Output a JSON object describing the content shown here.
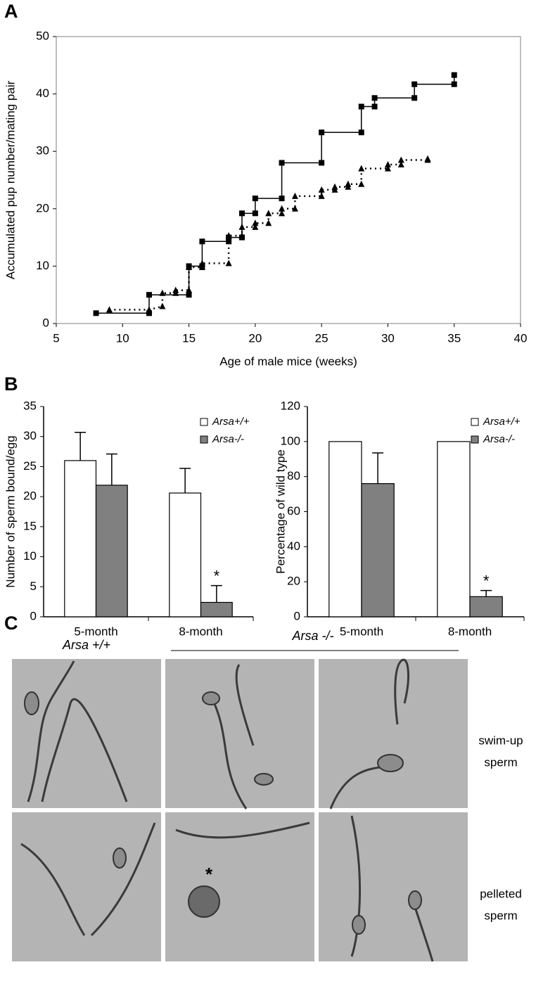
{
  "panel_labels": [
    "A",
    "B",
    "C"
  ],
  "chart_data": [
    {
      "type": "line",
      "xlabel": "Age of male mice (weeks)",
      "ylabel": "Accumulated pup number/mating pair",
      "xlim": [
        5,
        40
      ],
      "xticks": [
        5,
        10,
        15,
        20,
        25,
        30,
        35,
        40
      ],
      "ylim": [
        0,
        50
      ],
      "yticks": [
        0,
        10,
        20,
        30,
        40,
        50
      ],
      "frame": true,
      "series": [
        {
          "color": "#000000",
          "marker": "square",
          "linestyle": "solid",
          "x": [
            8,
            12,
            12,
            15,
            15,
            16,
            16,
            18,
            18,
            19,
            19,
            20,
            20,
            22,
            22,
            25,
            25,
            28,
            28,
            29,
            29,
            32,
            32,
            35,
            35
          ],
          "values": [
            1.8,
            1.8,
            5,
            5,
            10,
            10,
            14.3,
            14.3,
            15,
            15,
            19.2,
            19.2,
            21.8,
            21.8,
            28,
            28,
            33.3,
            33.3,
            37.8,
            37.8,
            39.3,
            39.3,
            41.7,
            41.7,
            43.3
          ]
        },
        {
          "color": "#000000",
          "marker": "triangle",
          "linestyle": "dotted",
          "x": [
            9,
            12,
            13,
            13,
            14,
            14,
            15,
            15,
            16,
            16,
            18,
            18,
            19,
            19,
            20,
            20,
            21,
            21,
            22,
            22,
            23,
            23,
            25,
            25,
            26,
            26,
            27,
            27,
            28,
            28,
            30,
            30,
            31,
            31,
            33,
            33
          ],
          "values": [
            2.4,
            2.4,
            3,
            5.3,
            5.3,
            5.8,
            5.8,
            9.8,
            9.8,
            10.5,
            10.5,
            15.3,
            15.3,
            16.8,
            16.8,
            17.5,
            17.5,
            19.2,
            19.2,
            20,
            20,
            22.2,
            22.2,
            23.3,
            23.3,
            23.8,
            23.8,
            24.3,
            24.3,
            27,
            27,
            27.7,
            27.7,
            28.5,
            28.5,
            28.7
          ]
        }
      ]
    },
    {
      "type": "bar",
      "ylabel": "Number of sperm bound/egg",
      "categories": [
        "5-month",
        "8-month"
      ],
      "ylim": [
        0,
        35
      ],
      "yticks": [
        0,
        5,
        10,
        15,
        20,
        25,
        30,
        35
      ],
      "annotation": "*",
      "series": [
        {
          "name": "Arsa+/+",
          "color": "#ffffff",
          "values": [
            26,
            20.6
          ],
          "errors": [
            4.7,
            4.1
          ]
        },
        {
          "name": "Arsa-/-",
          "color": "#808080",
          "values": [
            21.9,
            2.4
          ],
          "errors": [
            5.2,
            2.8
          ]
        }
      ]
    },
    {
      "type": "bar",
      "ylabel": "Percentage of wild type",
      "categories": [
        "5-month",
        "8-month"
      ],
      "ylim": [
        0,
        120
      ],
      "yticks": [
        0,
        20,
        40,
        60,
        80,
        100,
        120
      ],
      "annotation": "*",
      "series": [
        {
          "name": "Arsa+/+",
          "color": "#ffffff",
          "values": [
            100,
            100
          ]
        },
        {
          "name": "Arsa-/-",
          "color": "#808080",
          "values": [
            76,
            11.5
          ],
          "errors": [
            17.5,
            3.5
          ]
        }
      ]
    }
  ],
  "micrographs": {
    "columns": [
      "Arsa +/+",
      "Arsa -/-"
    ],
    "rows": [
      [
        "swim-up",
        "sperm"
      ],
      [
        "pelleted",
        "sperm"
      ]
    ],
    "marker": "*"
  }
}
